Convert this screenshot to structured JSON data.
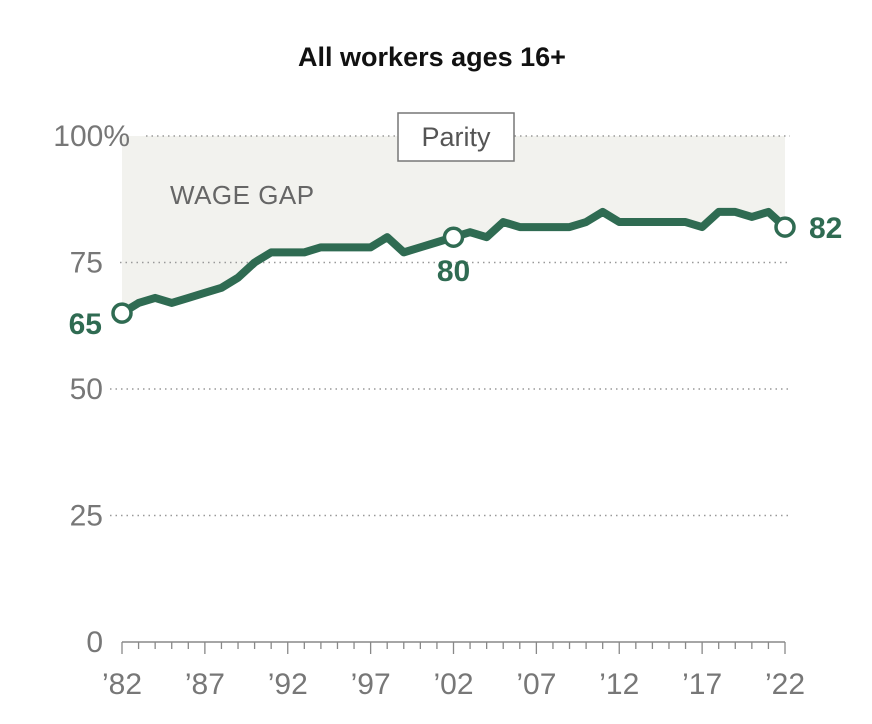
{
  "colors": {
    "line": "#2f6b52",
    "gap_fill": "#f2f2ee",
    "grid": "#999999",
    "axis": "#888888"
  },
  "chart_data": {
    "type": "line",
    "title": "All workers ages 16+",
    "xlabel": "",
    "ylabel": "",
    "xlim": [
      1982,
      2022
    ],
    "ylim": [
      0,
      100
    ],
    "grid": true,
    "x_ticks": [
      1982,
      1987,
      1992,
      1997,
      2002,
      2007,
      2012,
      2017,
      2022
    ],
    "x_tick_labels": [
      "’82",
      "’87",
      "’92",
      "’97",
      "’02",
      "’07",
      "’12",
      "’17",
      "’22"
    ],
    "y_ticks": [
      0,
      25,
      50,
      75,
      100
    ],
    "y_tick_labels": [
      "0",
      "25",
      "50",
      "75",
      "100%"
    ],
    "series": [
      {
        "name": "",
        "x": [
          1982,
          1983,
          1984,
          1985,
          1986,
          1987,
          1988,
          1989,
          1990,
          1991,
          1992,
          1993,
          1994,
          1995,
          1996,
          1997,
          1998,
          1999,
          2000,
          2001,
          2002,
          2003,
          2004,
          2005,
          2006,
          2007,
          2008,
          2009,
          2010,
          2011,
          2012,
          2013,
          2014,
          2015,
          2016,
          2017,
          2018,
          2019,
          2020,
          2021,
          2022
        ],
        "y": [
          65,
          67,
          68,
          67,
          68,
          69,
          70,
          72,
          75,
          77,
          77,
          77,
          78,
          78,
          78,
          78,
          80,
          77,
          78,
          79,
          80,
          81,
          80,
          83,
          82,
          82,
          82,
          82,
          83,
          85,
          83,
          83,
          83,
          83,
          83,
          82,
          85,
          85,
          84,
          85,
          82
        ]
      }
    ],
    "highlighted_points": [
      {
        "x": 1982,
        "y": 65,
        "label": "65"
      },
      {
        "x": 2002,
        "y": 80,
        "label": "80"
      },
      {
        "x": 2022,
        "y": 82,
        "label": "82"
      }
    ],
    "annotations": {
      "parity": "Parity",
      "wage_gap": "WAGE GAP"
    }
  }
}
